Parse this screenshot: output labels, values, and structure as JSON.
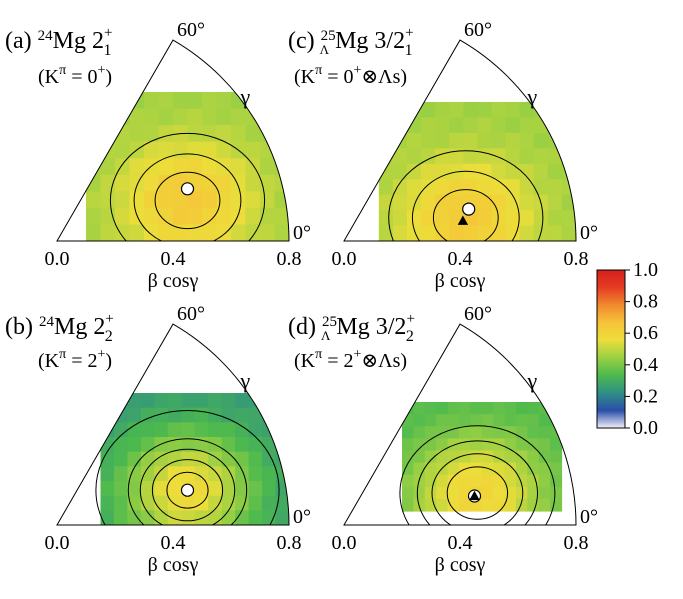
{
  "colormap": {
    "ticks": [
      "1.0",
      "0.8",
      "0.6",
      "0.4",
      "0.2",
      "0.0"
    ],
    "stops": [
      "#f4f0fa",
      "#2a4ea8",
      "#2f8f86",
      "#4cb94e",
      "#9ad043",
      "#ecde3a",
      "#f6c338",
      "#f08a2e",
      "#e63c22",
      "#d41f1d"
    ]
  },
  "chart_data": [
    {
      "type": "heatmap",
      "panel": "(a)",
      "title_nucleus": "Mg",
      "mass_number": "24",
      "state": "2",
      "sub": "1",
      "sup": "+",
      "k_label": "(Kπ = 0+)",
      "k_parts": [
        "(K",
        "π",
        " = 0",
        "+",
        ")"
      ],
      "xlabel": "β cosγ",
      "x_ticks": [
        "0.0",
        "0.4",
        "0.8"
      ],
      "corner_labels": {
        "top": "60°",
        "right": "0°",
        "gamma": "γ"
      },
      "beta_range": [
        0.1,
        0.8
      ],
      "max_point": {
        "beta_cos_gamma": 0.45,
        "beta_sin_gamma": 0.18
      },
      "lambda_point": null,
      "peak": {
        "beta_cos_gamma": 0.45,
        "beta_sin_gamma": 0.14,
        "value": 0.64
      },
      "floor": 0.45,
      "contour_levels": [
        0.45,
        0.5,
        0.55,
        0.6
      ]
    },
    {
      "type": "heatmap",
      "panel": "(b)",
      "title_nucleus": "Mg",
      "mass_number": "24",
      "state": "2",
      "sub": "2",
      "sup": "+",
      "k_label": "(Kπ = 2+)",
      "k_parts": [
        "(K",
        "π",
        " = 2",
        "+",
        ")"
      ],
      "xlabel": "β cosγ",
      "x_ticks": [
        "0.0",
        "0.4",
        "0.8"
      ],
      "corner_labels": {
        "top": "60°",
        "right": "0°",
        "gamma": "γ"
      },
      "beta_range": [
        0.15,
        0.8
      ],
      "max_point": {
        "beta_cos_gamma": 0.45,
        "beta_sin_gamma": 0.12
      },
      "lambda_point": null,
      "peak": {
        "beta_cos_gamma": 0.45,
        "beta_sin_gamma": 0.12,
        "value": 0.58
      },
      "floor": 0.25,
      "contour_levels": [
        0.3,
        0.4,
        0.45,
        0.5,
        0.55
      ]
    },
    {
      "type": "heatmap",
      "panel": "(c)",
      "title_nucleus": "Mg",
      "mass_number": "25",
      "hyper": "Λ",
      "state": "3/2",
      "sub": "1",
      "sup": "+",
      "k_label": "(Kπ = 0+⊗Λs)",
      "k_parts": [
        "(K",
        "π",
        " = 0",
        "+",
        "⊗Λs)"
      ],
      "xlabel": "β cosγ",
      "x_ticks": [
        "0.0",
        "0.4",
        "0.8"
      ],
      "corner_labels": {
        "top": "60°",
        "right": "0°",
        "gamma": "γ"
      },
      "beta_range": [
        0.12,
        0.8
      ],
      "max_point": {
        "beta_cos_gamma": 0.43,
        "beta_sin_gamma": 0.11
      },
      "lambda_point": {
        "beta_cos_gamma": 0.41,
        "beta_sin_gamma": 0.07
      },
      "peak": {
        "beta_cos_gamma": 0.42,
        "beta_sin_gamma": 0.08,
        "value": 0.64
      },
      "floor": 0.45,
      "contour_levels": [
        0.45,
        0.5,
        0.55,
        0.6
      ]
    },
    {
      "type": "heatmap",
      "panel": "(d)",
      "title_nucleus": "Mg",
      "mass_number": "25",
      "hyper": "Λ",
      "state": "3/2",
      "sub": "2",
      "sup": "+",
      "k_label": "(Kπ = 2+⊗Λs)",
      "k_parts": [
        "(K",
        "π",
        " = 2",
        "+",
        "⊗Λs)"
      ],
      "xlabel": "β cosγ",
      "x_ticks": [
        "0.0",
        "0.4",
        "0.8"
      ],
      "corner_labels": {
        "top": "60°",
        "right": "0°",
        "gamma": "γ"
      },
      "beta_range": [
        0.2,
        0.75
      ],
      "max_point": {
        "beta_cos_gamma": 0.45,
        "beta_sin_gamma": 0.1
      },
      "lambda_point": {
        "beta_cos_gamma": 0.45,
        "beta_sin_gamma": 0.1
      },
      "peak": {
        "beta_cos_gamma": 0.46,
        "beta_sin_gamma": 0.11,
        "value": 0.6
      },
      "floor": 0.33,
      "contour_levels": [
        0.4,
        0.45,
        0.5,
        0.55
      ]
    }
  ]
}
